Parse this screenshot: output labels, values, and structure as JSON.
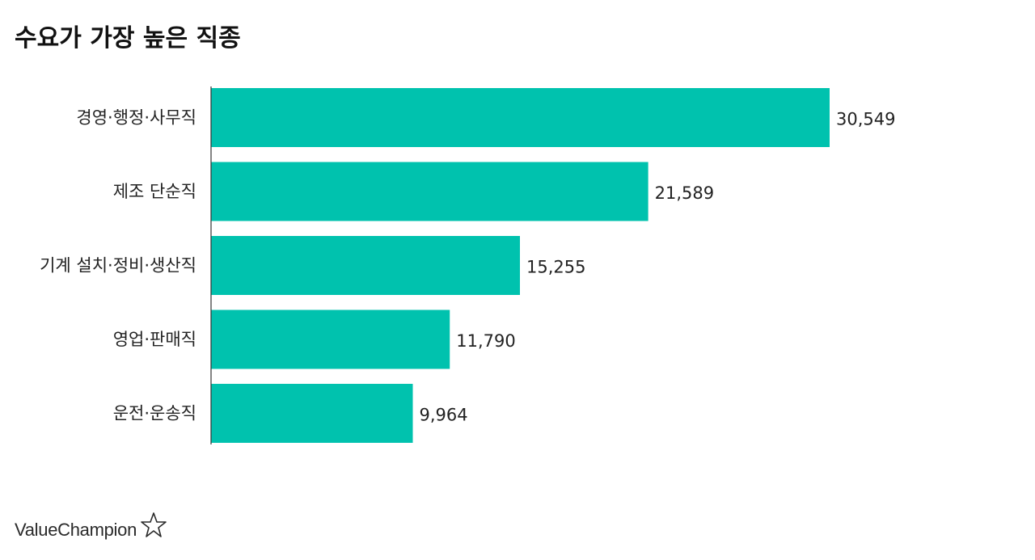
{
  "title": "수요가 가장 높은 직종",
  "brand": {
    "name": "ValueChampion",
    "icon": "star-outline-icon"
  },
  "colors": {
    "bar": "#00C2AE",
    "axis": "#333333",
    "text": "#222222"
  },
  "chart_data": {
    "type": "bar",
    "orientation": "horizontal",
    "title": "수요가 가장 높은 직종",
    "categories": [
      "경영·행정·사무직",
      "제조 단순직",
      "기계 설치·정비·생산직",
      "영업·판매직",
      "운전·운송직"
    ],
    "values": [
      30549,
      21589,
      15255,
      11790,
      9964
    ],
    "value_labels": [
      "30,549",
      "21,589",
      "15,255",
      "11,790",
      "9,964"
    ],
    "xlim": [
      0,
      30549
    ],
    "grid": false,
    "legend": "none"
  }
}
